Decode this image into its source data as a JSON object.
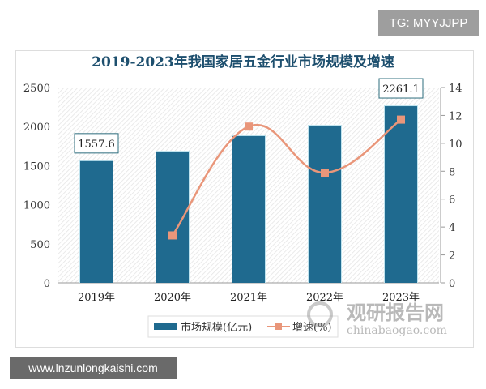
{
  "watermark_top": "TG: MYYJJPP",
  "watermark_bottom": "www.lnzunlongkaishi.com",
  "logo": {
    "cn": "观研报告网",
    "en": "chinabaogao.com"
  },
  "chart_data": {
    "type": "bar+line",
    "title": "2019-2023年我国家居五金行业市场规模及增速",
    "categories": [
      "2019年",
      "2020年",
      "2021年",
      "2022年",
      "2023年"
    ],
    "series": [
      {
        "name": "市场规模(亿元)",
        "type": "bar",
        "axis": "left",
        "values": [
          1557.6,
          1680,
          1878,
          2012,
          2261.1
        ],
        "color": "#1f6a8f"
      },
      {
        "name": "增速(%)",
        "type": "line",
        "axis": "right",
        "values": [
          null,
          3.4,
          11.2,
          7.9,
          11.7
        ],
        "color": "#e9967a"
      }
    ],
    "data_labels": [
      "1557.6",
      "2261.1"
    ],
    "y_left": {
      "lim": [
        0,
        2500
      ],
      "ticks": [
        "0",
        "500",
        "1000",
        "1500",
        "2000",
        "2500"
      ]
    },
    "y_right": {
      "lim": [
        0,
        14
      ],
      "ticks": [
        "0",
        "2",
        "4",
        "6",
        "8",
        "10",
        "12",
        "14"
      ]
    },
    "legend": "bottom",
    "grid": false
  }
}
